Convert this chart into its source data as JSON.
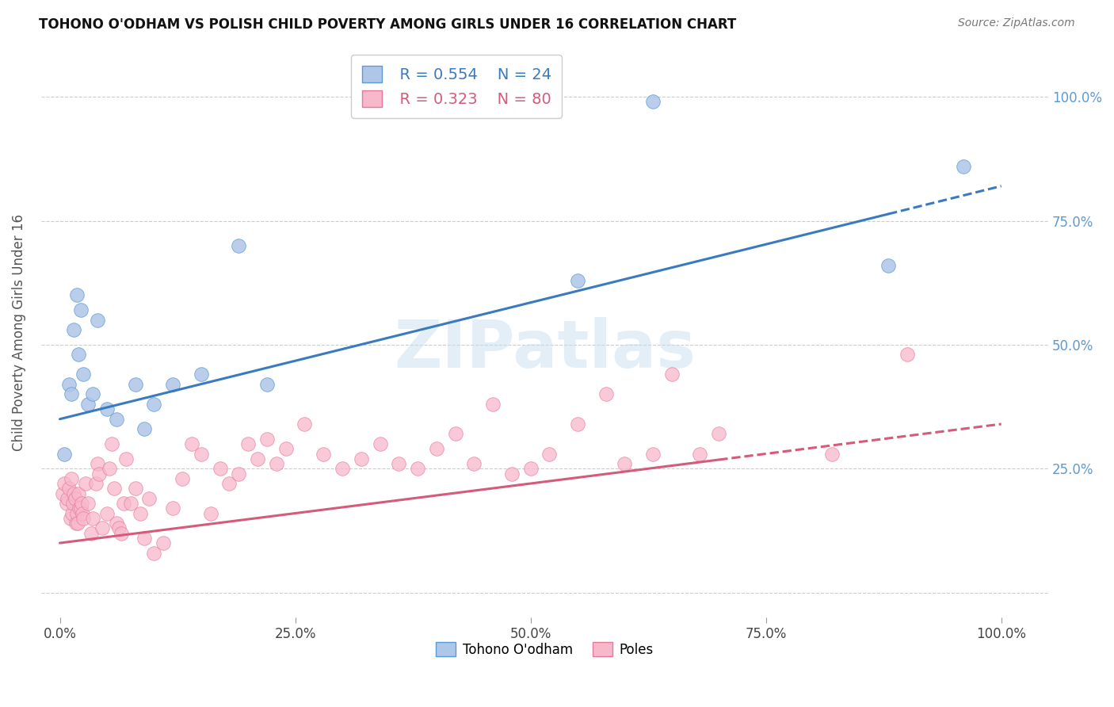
{
  "title": "TOHONO O'ODHAM VS POLISH CHILD POVERTY AMONG GIRLS UNDER 16 CORRELATION CHART",
  "source": "Source: ZipAtlas.com",
  "ylabel": "Child Poverty Among Girls Under 16",
  "watermark": "ZIPatlas",
  "legend_blue_r": "R = 0.554",
  "legend_blue_n": "N = 24",
  "legend_pink_r": "R = 0.323",
  "legend_pink_n": "N = 80",
  "blue_fill": "#aec6e8",
  "pink_fill": "#f7b8cb",
  "blue_edge": "#5b9bd5",
  "pink_edge": "#e8789a",
  "blue_line": "#3a7abf",
  "pink_line": "#d45b7a",
  "grid_color": "#cccccc",
  "blue_scatter_x": [
    0.5,
    1.0,
    1.2,
    1.5,
    1.8,
    2.0,
    2.2,
    2.5,
    3.0,
    3.5,
    4.0,
    5.0,
    6.0,
    8.0,
    9.0,
    10.0,
    12.0,
    15.0,
    19.0,
    22.0,
    55.0,
    63.0,
    88.0,
    96.0
  ],
  "blue_scatter_y": [
    28.0,
    42.0,
    40.0,
    53.0,
    60.0,
    48.0,
    57.0,
    44.0,
    38.0,
    40.0,
    55.0,
    37.0,
    35.0,
    42.0,
    33.0,
    38.0,
    42.0,
    44.0,
    70.0,
    42.0,
    63.0,
    99.0,
    66.0,
    86.0
  ],
  "pink_scatter_x": [
    0.3,
    0.5,
    0.7,
    0.8,
    1.0,
    1.1,
    1.2,
    1.3,
    1.4,
    1.5,
    1.6,
    1.7,
    1.8,
    1.9,
    2.0,
    2.1,
    2.2,
    2.3,
    2.4,
    2.5,
    2.7,
    3.0,
    3.3,
    3.5,
    3.8,
    4.0,
    4.2,
    4.5,
    5.0,
    5.3,
    5.5,
    5.8,
    6.0,
    6.3,
    6.5,
    6.8,
    7.0,
    7.5,
    8.0,
    8.5,
    9.0,
    9.5,
    10.0,
    11.0,
    12.0,
    13.0,
    14.0,
    15.0,
    16.0,
    17.0,
    18.0,
    19.0,
    20.0,
    21.0,
    22.0,
    23.0,
    24.0,
    26.0,
    28.0,
    30.0,
    32.0,
    34.0,
    36.0,
    38.0,
    40.0,
    42.0,
    44.0,
    46.0,
    48.0,
    50.0,
    52.0,
    55.0,
    58.0,
    60.0,
    63.0,
    65.0,
    68.0,
    70.0,
    82.0,
    90.0
  ],
  "pink_scatter_y": [
    20.0,
    22.0,
    18.0,
    19.0,
    21.0,
    15.0,
    23.0,
    16.0,
    18.0,
    20.0,
    19.0,
    14.0,
    16.0,
    14.0,
    20.0,
    17.0,
    17.0,
    18.0,
    16.0,
    15.0,
    22.0,
    18.0,
    12.0,
    15.0,
    22.0,
    26.0,
    24.0,
    13.0,
    16.0,
    25.0,
    30.0,
    21.0,
    14.0,
    13.0,
    12.0,
    18.0,
    27.0,
    18.0,
    21.0,
    16.0,
    11.0,
    19.0,
    8.0,
    10.0,
    17.0,
    23.0,
    30.0,
    28.0,
    16.0,
    25.0,
    22.0,
    24.0,
    30.0,
    27.0,
    31.0,
    26.0,
    29.0,
    34.0,
    28.0,
    25.0,
    27.0,
    30.0,
    26.0,
    25.0,
    29.0,
    32.0,
    26.0,
    38.0,
    24.0,
    25.0,
    28.0,
    34.0,
    40.0,
    26.0,
    28.0,
    44.0,
    28.0,
    32.0,
    28.0,
    48.0
  ],
  "blue_trend_x": [
    0.0,
    100.0
  ],
  "blue_trend_y": [
    35.0,
    82.0
  ],
  "pink_trend_x": [
    0.0,
    100.0
  ],
  "pink_trend_y": [
    10.0,
    34.0
  ],
  "blue_dashed_from": 88.0,
  "pink_dashed_from": 70.0,
  "xlim": [
    -2.0,
    105.0
  ],
  "ylim": [
    -5.0,
    110.0
  ],
  "xticks": [
    0,
    25,
    50,
    75,
    100
  ],
  "yticks": [
    0,
    25,
    50,
    75,
    100
  ],
  "xticklabels": [
    "0.0%",
    "25.0%",
    "50.0%",
    "75.0%",
    "100.0%"
  ],
  "yticklabels_right": [
    "",
    "25.0%",
    "50.0%",
    "75.0%",
    "100.0%"
  ]
}
